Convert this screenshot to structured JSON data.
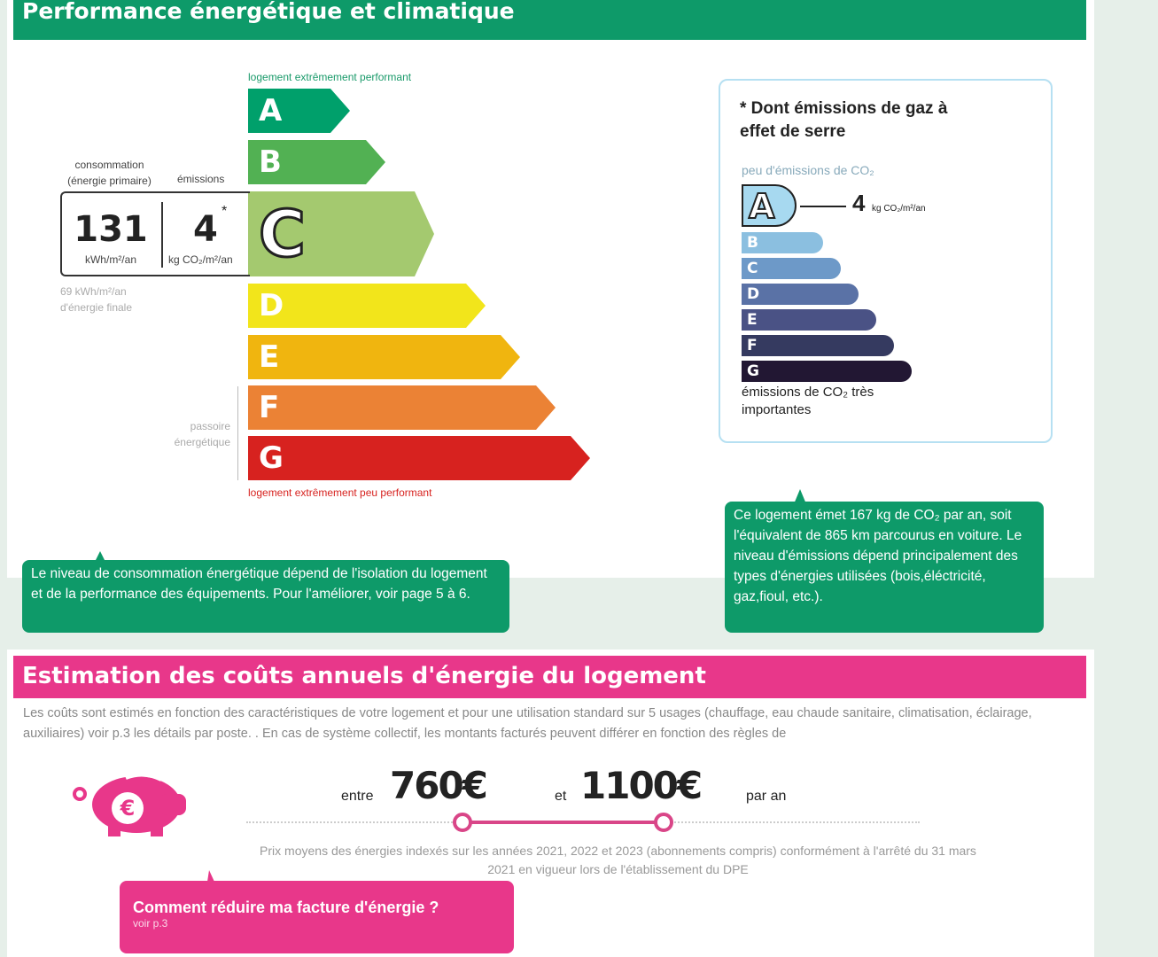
{
  "energy": {
    "title": "Performance énergétique et climatique",
    "top_label": "logement extrêmement performant",
    "bottom_label": "logement extrêmement peu performant",
    "consumption_label": "consommation (énergie primaire)",
    "emissions_label": "émissions",
    "consumption_value": "131",
    "consumption_unit": "kWh/m²/an",
    "emissions_value": "4",
    "emissions_star": "*",
    "emissions_unit": "kg CO₂/m²/an",
    "final_energy": "69 kWh/m²/an d'énergie finale",
    "passoire_label": "passoire énergétique",
    "current_class": "C",
    "classes": [
      {
        "letter": "A",
        "color": "#00a06b"
      },
      {
        "letter": "B",
        "color": "#52b153"
      },
      {
        "letter": "C",
        "color": "#a4c96f"
      },
      {
        "letter": "D",
        "color": "#f2e51b"
      },
      {
        "letter": "E",
        "color": "#f0b50f"
      },
      {
        "letter": "F",
        "color": "#eb8235"
      },
      {
        "letter": "G",
        "color": "#d7221f"
      }
    ]
  },
  "ges": {
    "title": "* Dont émissions de gaz à effet de serre",
    "top_label": "peu d'émissions de CO₂",
    "bottom_label": "émissions de CO₂ très importantes",
    "current_class": "A",
    "value": "4",
    "unit": "kg CO₂/m²/an",
    "classes": [
      {
        "letter": "A",
        "color": "#a7d9f0"
      },
      {
        "letter": "B",
        "color": "#8bbfe0"
      },
      {
        "letter": "C",
        "color": "#6d99c8"
      },
      {
        "letter": "D",
        "color": "#5a72a6"
      },
      {
        "letter": "E",
        "color": "#4a5285"
      },
      {
        "letter": "F",
        "color": "#353a60"
      },
      {
        "letter": "G",
        "color": "#221733"
      }
    ]
  },
  "callouts": {
    "consumption": "Le niveau de consommation énergétique dépend de l'isolation du logement  et de la performance des équipements. Pour l'améliorer, voir page 5 à 6.",
    "emissions": "Ce logement émet 167 kg de CO₂ par an, soit l'équivalent de 865 km parcourus en voiture. Le niveau d'émissions dépend principalement des types d'énergies utilisées (bois,éléctricité, gaz,fioul, etc.)."
  },
  "costs": {
    "title": "Estimation des coûts annuels d'énergie du logement",
    "intro": "Les coûts sont estimés en fonction des caractéristiques de votre logement et pour une utilisation standard sur 5 usages (chauffage, eau chaude sanitaire, climatisation, éclairage, auxiliaires) voir p.3 les détails par poste. . En cas de système collectif, les montants facturés peuvent différer en fonction des règles de",
    "between": "entre",
    "min": "760€",
    "and": "et",
    "max": "1100€",
    "per_year": "par an",
    "note": "Prix moyens des énergies indexés sur les années 2021, 2022 et 2023 (abonnements compris) conformément à l'arrêté du 31 mars 2021 en vigueur lors de l'établissement du DPE",
    "reduce_title": "Comment réduire ma facture d'énergie ?",
    "reduce_link": "voir p.3",
    "accent": "#e8378a"
  }
}
